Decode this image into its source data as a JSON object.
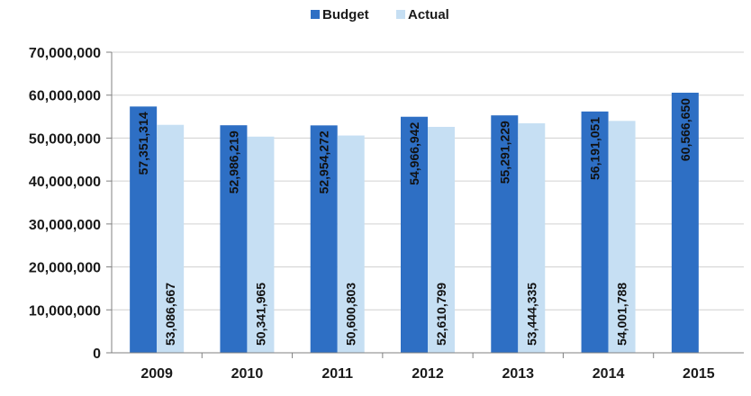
{
  "chart_data": {
    "type": "bar",
    "title": "",
    "xlabel": "",
    "ylabel": "",
    "categories": [
      "2009",
      "2010",
      "2011",
      "2012",
      "2013",
      "2014",
      "2015"
    ],
    "series": [
      {
        "name": "Budget",
        "color": "#2e6fc4",
        "values": [
          57351314,
          52986219,
          52954272,
          54966942,
          55291229,
          56191051,
          60566650
        ],
        "labels": [
          "57,351,314",
          "52,986,219",
          "52,954,272",
          "54,966,942",
          "55,291,229",
          "56,191,051",
          "60,566,650"
        ]
      },
      {
        "name": "Actual",
        "color": "#c6dff3",
        "values": [
          53086667,
          50341965,
          50600803,
          52610799,
          53444335,
          54001788,
          null
        ],
        "labels": [
          "53,086,667",
          "50,341,965",
          "50,600,803",
          "52,610,799",
          "53,444,335",
          "54,001,788",
          ""
        ]
      }
    ],
    "ylim": [
      0,
      70000000
    ],
    "yticks": [
      "0",
      "10,000,000",
      "20,000,000",
      "30,000,000",
      "40,000,000",
      "50,000,000",
      "60,000,000",
      "70,000,000"
    ],
    "grid": true,
    "legend": "top-center"
  }
}
